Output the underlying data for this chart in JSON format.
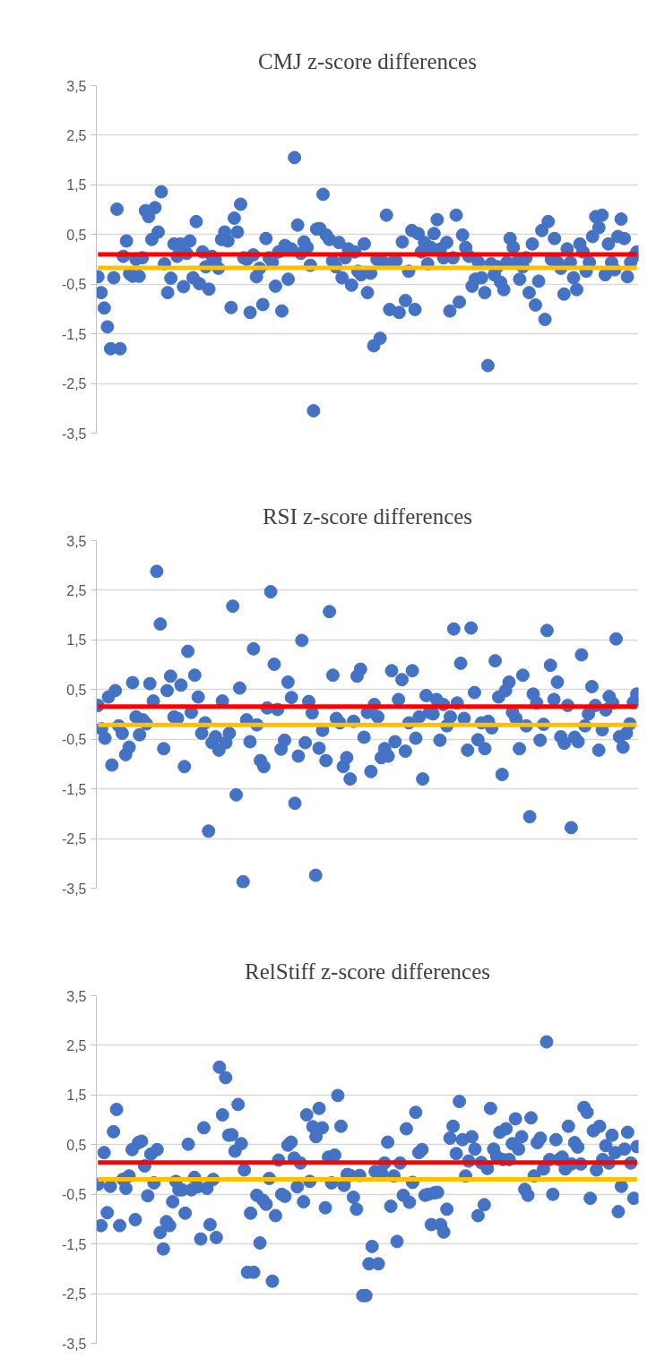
{
  "chart_data": [
    {
      "type": "scatter",
      "title": "CMJ z-score differences",
      "marker": "circle",
      "grid": "y",
      "tick_labels": "y",
      "categories": [
        null,
        null,
        null,
        null,
        null,
        null,
        null,
        null,
        null,
        null,
        null,
        null,
        null,
        null,
        null,
        null,
        null,
        null,
        null,
        null,
        null,
        null,
        null,
        null,
        null,
        null,
        null,
        null,
        null,
        null,
        null,
        null,
        null,
        null,
        null,
        null,
        null,
        null,
        null,
        null,
        null,
        null,
        null,
        null,
        null,
        null,
        null,
        null,
        null,
        null,
        null,
        null,
        null,
        null,
        null,
        null,
        null,
        null,
        null,
        null,
        null,
        null,
        null,
        null,
        null,
        null,
        null,
        null,
        null,
        null,
        null,
        null,
        null,
        null,
        null,
        null,
        null,
        null,
        null,
        null,
        null,
        null,
        null,
        null,
        null,
        null,
        null,
        null,
        null,
        null,
        null,
        null,
        null,
        null,
        null,
        null,
        null,
        null,
        null,
        null,
        null,
        null,
        null,
        null,
        null,
        null,
        null,
        null,
        null,
        null,
        null,
        null,
        null,
        null,
        null,
        null,
        null,
        null,
        null,
        null,
        null,
        null,
        null,
        null,
        null,
        null,
        null,
        null,
        null,
        null,
        null,
        null,
        null,
        null,
        null,
        null,
        null,
        null,
        null,
        null,
        null,
        null,
        null,
        null,
        null,
        null,
        null,
        null,
        null,
        null,
        null,
        null,
        null,
        null,
        null,
        null,
        null,
        null,
        null,
        null,
        null,
        null,
        null,
        null,
        null,
        null,
        null,
        null,
        null,
        null,
        null
      ],
      "ylim": [
        -3.5,
        3.5
      ],
      "yticks": [
        {
          "value": -3.5,
          "label": "-3,5"
        },
        {
          "value": -2.5,
          "label": "-2,5"
        },
        {
          "value": -1.5,
          "label": "-1,5"
        },
        {
          "value": -0.5,
          "label": "-0,5"
        },
        {
          "value": 0.5,
          "label": "0,5"
        },
        {
          "value": 1.5,
          "label": "1,5"
        },
        {
          "value": 2.5,
          "label": "2,5"
        },
        {
          "value": 3.5,
          "label": "3,5"
        }
      ],
      "ref_lines": [
        {
          "axis": "y",
          "value": 0.1,
          "color": "#ff0000"
        },
        {
          "axis": "y",
          "value": -0.17,
          "color": "#ffc000"
        }
      ],
      "series": [
        {
          "color": "#4472c4",
          "values": [
            -0.35,
            -0.67,
            -0.98,
            -1.36,
            -1.8,
            -0.37,
            1.01,
            -1.8,
            0.06,
            0.37,
            -0.29,
            -0.34,
            0.0,
            -0.34,
            0.03,
            0.98,
            0.86,
            0.4,
            1.04,
            0.55,
            1.36,
            -0.09,
            -0.67,
            -0.38,
            0.31,
            0.06,
            0.31,
            -0.55,
            0.12,
            0.37,
            -0.37,
            0.76,
            -0.49,
            0.15,
            -0.15,
            -0.6,
            0.06,
            0.0,
            -0.18,
            0.4,
            0.55,
            0.37,
            -0.97,
            0.83,
            0.55,
            1.11,
            0.03,
            0.0,
            -1.07,
            0.09,
            -0.35,
            -0.18,
            -0.91,
            0.42,
            0.03,
            -0.06,
            -0.54,
            0.15,
            -1.04,
            0.28,
            -0.4,
            0.21,
            2.05,
            0.69,
            0.12,
            0.35,
            0.24,
            -0.12,
            -3.05,
            0.61,
            0.62,
            1.31,
            0.49,
            0.4,
            -0.03,
            -0.15,
            0.34,
            -0.37,
            0.03,
            0.21,
            -0.52,
            0.15,
            -0.24,
            -0.31,
            0.31,
            -0.67,
            -0.28,
            -1.74,
            0.0,
            -1.59,
            -0.06,
            0.89,
            -1.01,
            -0.06,
            -0.03,
            -1.07,
            0.35,
            -0.83,
            -0.24,
            0.58,
            -1.01,
            0.52,
            0.15,
            0.34,
            -0.09,
            0.24,
            0.52,
            0.8,
            0.21,
            0.03,
            0.34,
            -1.04,
            0.03,
            0.89,
            -0.86,
            0.49,
            0.24,
            0.06,
            -0.54,
            -0.4,
            -0.06,
            -0.37,
            -0.67,
            -2.14,
            -0.09,
            -0.31,
            -0.15,
            -0.46,
            -0.61,
            -0.06,
            0.42,
            0.24,
            -0.06,
            -0.4,
            -0.15,
            0.03,
            -0.67,
            0.31,
            -0.92,
            -0.44,
            0.58,
            -1.21,
            0.76,
            0.0,
            0.42,
            -0.06,
            -0.18,
            -0.7,
            0.21,
            -0.06,
            -0.37,
            -0.61,
            0.31,
            0.15,
            -0.24,
            -0.06,
            0.46,
            0.86,
            0.64,
            0.89,
            -0.31,
            0.31,
            -0.06,
            -0.21,
            0.46,
            0.81,
            0.42,
            -0.35,
            -0.06,
            0.06,
            0.15
          ]
        }
      ]
    },
    {
      "type": "scatter",
      "title": "RSI z-score differences",
      "marker": "circle",
      "grid": "y",
      "tick_labels": "y",
      "categories": [
        null,
        null,
        null,
        null,
        null,
        null,
        null,
        null,
        null,
        null,
        null,
        null,
        null,
        null,
        null,
        null,
        null,
        null,
        null,
        null,
        null,
        null,
        null,
        null,
        null,
        null,
        null,
        null,
        null,
        null,
        null,
        null,
        null,
        null,
        null,
        null,
        null,
        null,
        null,
        null,
        null,
        null,
        null,
        null,
        null,
        null,
        null,
        null,
        null,
        null,
        null,
        null,
        null,
        null,
        null,
        null,
        null,
        null,
        null,
        null,
        null,
        null,
        null,
        null,
        null,
        null,
        null,
        null,
        null,
        null,
        null,
        null,
        null,
        null,
        null,
        null,
        null,
        null,
        null,
        null,
        null,
        null,
        null,
        null,
        null,
        null,
        null,
        null,
        null,
        null,
        null,
        null,
        null,
        null,
        null,
        null,
        null,
        null,
        null,
        null,
        null,
        null,
        null,
        null,
        null,
        null,
        null,
        null,
        null,
        null,
        null,
        null,
        null,
        null,
        null,
        null,
        null,
        null,
        null,
        null,
        null,
        null,
        null,
        null,
        null,
        null,
        null,
        null,
        null,
        null,
        null,
        null,
        null,
        null,
        null,
        null,
        null,
        null,
        null,
        null,
        null,
        null,
        null,
        null,
        null,
        null,
        null,
        null,
        null,
        null,
        null,
        null,
        null,
        null,
        null,
        null,
        null
      ],
      "ylim": [
        -3.5,
        3.5
      ],
      "yticks": [
        {
          "value": -3.5,
          "label": "-3,5"
        },
        {
          "value": -2.5,
          "label": "-2,5"
        },
        {
          "value": -1.5,
          "label": "-1,5"
        },
        {
          "value": -0.5,
          "label": "-0,5"
        },
        {
          "value": 0.5,
          "label": "0,5"
        },
        {
          "value": 1.5,
          "label": "1,5"
        },
        {
          "value": 2.5,
          "label": "2,5"
        },
        {
          "value": 3.5,
          "label": "3,5"
        }
      ],
      "ref_lines": [
        {
          "axis": "y",
          "value": 0.16,
          "color": "#ff0000"
        },
        {
          "axis": "y",
          "value": -0.21,
          "color": "#ffc000"
        }
      ],
      "series": [
        {
          "color": "#4472c4",
          "values": [
            0.18,
            -0.29,
            -0.48,
            0.35,
            -1.02,
            0.48,
            -0.23,
            -0.38,
            -0.81,
            -0.66,
            0.64,
            -0.05,
            -0.41,
            -0.11,
            -0.19,
            0.62,
            0.27,
            2.88,
            1.82,
            -0.69,
            0.48,
            0.77,
            -0.05,
            -0.08,
            0.59,
            -1.05,
            1.27,
            0.04,
            0.79,
            0.35,
            -0.38,
            -0.17,
            -2.35,
            -0.57,
            -0.45,
            -0.72,
            0.27,
            -0.57,
            -0.38,
            2.18,
            -1.62,
            0.53,
            -3.37,
            -0.11,
            -0.55,
            1.32,
            -0.21,
            -0.93,
            -1.05,
            0.13,
            2.47,
            1.01,
            0.1,
            -0.7,
            -0.52,
            0.65,
            0.34,
            -1.79,
            -0.84,
            1.49,
            -0.57,
            0.26,
            0.03,
            -3.24,
            -0.68,
            -0.32,
            -0.93,
            2.07,
            0.79,
            -0.08,
            -0.17,
            -1.05,
            -0.87,
            -1.3,
            -0.14,
            0.77,
            0.91,
            -0.46,
            0.04,
            -1.15,
            0.2,
            -0.05,
            -0.87,
            -0.69,
            -0.84,
            0.88,
            -0.55,
            0.3,
            0.7,
            -0.74,
            -0.17,
            0.88,
            -0.48,
            -0.05,
            -1.3,
            0.38,
            0.04,
            0.01,
            0.3,
            -0.52,
            0.2,
            -0.23,
            -0.05,
            1.72,
            0.23,
            1.03,
            -0.08,
            -0.72,
            1.74,
            0.44,
            -0.51,
            -0.17,
            -0.69,
            -0.14,
            -0.27,
            1.08,
            0.35,
            -1.21,
            0.48,
            0.65,
            0.04,
            -0.08,
            -0.69,
            0.79,
            -0.23,
            -2.06,
            0.41,
            0.23,
            -0.52,
            -0.2,
            1.69,
            0.99,
            0.3,
            0.65,
            -0.45,
            -0.58,
            0.18,
            -2.28,
            -0.46,
            -0.55,
            1.2,
            -0.23,
            0.01,
            0.56,
            0.18,
            -0.72,
            -0.31,
            0.09,
            0.36,
            0.23,
            1.52,
            -0.45,
            -0.66,
            -0.38,
            -0.19,
            0.24,
            0.41
          ]
        }
      ]
    },
    {
      "type": "scatter",
      "title": "RelStiff z-score differences",
      "marker": "circle",
      "grid": "y",
      "tick_labels": "y",
      "categories": [
        null,
        null,
        null,
        null,
        null,
        null,
        null,
        null,
        null,
        null,
        null,
        null,
        null,
        null,
        null,
        null,
        null,
        null,
        null,
        null,
        null,
        null,
        null,
        null,
        null,
        null,
        null,
        null,
        null,
        null,
        null,
        null,
        null,
        null,
        null,
        null,
        null,
        null,
        null,
        null,
        null,
        null,
        null,
        null,
        null,
        null,
        null,
        null,
        null,
        null,
        null,
        null,
        null,
        null,
        null,
        null,
        null,
        null,
        null,
        null,
        null,
        null,
        null,
        null,
        null,
        null,
        null,
        null,
        null,
        null,
        null,
        null,
        null,
        null,
        null,
        null,
        null,
        null,
        null,
        null,
        null,
        null,
        null,
        null,
        null,
        null,
        null,
        null,
        null,
        null,
        null,
        null,
        null,
        null,
        null,
        null,
        null,
        null,
        null,
        null,
        null,
        null,
        null,
        null,
        null,
        null,
        null,
        null,
        null,
        null,
        null,
        null,
        null,
        null,
        null,
        null,
        null,
        null,
        null,
        null,
        null,
        null,
        null,
        null,
        null,
        null,
        null,
        null,
        null,
        null,
        null,
        null,
        null,
        null,
        null,
        null,
        null,
        null,
        null,
        null,
        null,
        null,
        null,
        null,
        null,
        null,
        null,
        null,
        null,
        null,
        null,
        null,
        null,
        null,
        null,
        null,
        null,
        null,
        null,
        null,
        null,
        null,
        null,
        null,
        null,
        null,
        null,
        null,
        null,
        null,
        null,
        null,
        null,
        null
      ],
      "ylim": [
        -3.5,
        3.5
      ],
      "yticks": [
        {
          "value": -3.5,
          "label": "-3,5"
        },
        {
          "value": -2.5,
          "label": "-2,5"
        },
        {
          "value": -1.5,
          "label": "-1,5"
        },
        {
          "value": -0.5,
          "label": "-0,5"
        },
        {
          "value": 0.5,
          "label": "0,5"
        },
        {
          "value": 1.5,
          "label": "1,5"
        },
        {
          "value": 2.5,
          "label": "2,5"
        },
        {
          "value": 3.5,
          "label": "3,5"
        }
      ],
      "ref_lines": [
        {
          "axis": "y",
          "value": 0.14,
          "color": "#ff0000"
        },
        {
          "axis": "y",
          "value": -0.2,
          "color": "#ffc000"
        }
      ],
      "series": [
        {
          "color": "#4472c4",
          "values": [
            -0.3,
            -1.13,
            0.34,
            -0.87,
            -0.34,
            0.76,
            1.21,
            -1.13,
            -0.2,
            -0.38,
            -0.13,
            0.4,
            -1.01,
            0.54,
            0.57,
            0.07,
            -0.53,
            0.31,
            -0.27,
            0.4,
            -1.27,
            -1.6,
            -1.05,
            -1.13,
            -0.65,
            -0.24,
            -0.41,
            -0.41,
            -0.88,
            0.51,
            -0.41,
            -0.16,
            -0.35,
            -1.4,
            0.84,
            -0.38,
            -1.11,
            -0.2,
            -1.37,
            2.06,
            1.1,
            1.85,
            0.69,
            0.7,
            0.37,
            1.31,
            0.52,
            -0.01,
            -2.07,
            -0.88,
            -2.07,
            -0.52,
            -1.48,
            -0.62,
            -0.7,
            -0.18,
            -2.25,
            -0.93,
            0.19,
            -0.5,
            -0.54,
            0.49,
            0.55,
            0.23,
            -0.35,
            0.13,
            -0.65,
            1.1,
            -0.24,
            0.86,
            0.66,
            1.23,
            0.84,
            -0.77,
            0.25,
            -0.27,
            0.29,
            1.49,
            0.87,
            -0.32,
            -0.1,
            -0.12,
            -0.56,
            -0.8,
            -0.12,
            -2.54,
            -2.54,
            -1.9,
            -1.55,
            -0.04,
            -1.9,
            -0.07,
            0.13,
            0.55,
            -0.74,
            -0.13,
            -1.45,
            0.13,
            -0.52,
            0.82,
            -0.66,
            -0.26,
            1.15,
            0.34,
            0.4,
            -0.52,
            -0.5,
            -1.11,
            -0.47,
            -0.46,
            -1.11,
            -1.26,
            -0.8,
            0.63,
            0.87,
            0.32,
            1.37,
            0.6,
            -0.13,
            0.17,
            0.66,
            0.41,
            -0.93,
            0.14,
            -0.71,
            0.02,
            1.23,
            0.41,
            0.26,
            0.75,
            0.2,
            0.82,
            0.2,
            0.52,
            1.02,
            0.41,
            0.66,
            -0.4,
            -0.52,
            1.04,
            -0.13,
            0.54,
            0.63,
            0.01,
            2.57,
            0.2,
            -0.5,
            0.6,
            0.2,
            0.25,
            0.01,
            0.87,
            0.11,
            0.54,
            0.45,
            0.11,
            1.25,
            1.15,
            -0.58,
            0.78,
            -0.01,
            0.87,
            0.2,
            0.48,
            0.13,
            0.69,
            0.34,
            -0.85,
            -0.34,
            0.41,
            0.75,
            0.13,
            -0.58,
            0.46
          ]
        }
      ]
    }
  ]
}
